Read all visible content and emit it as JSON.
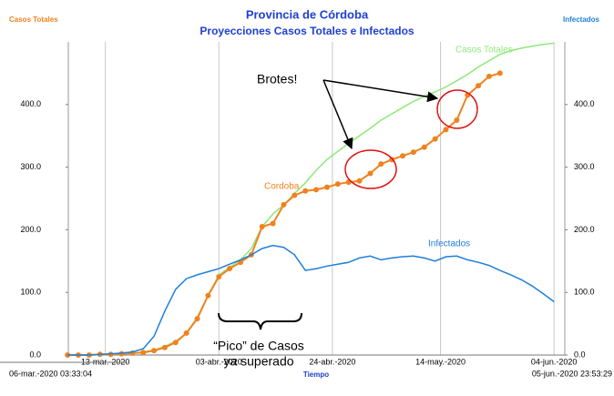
{
  "chart_data": {
    "type": "line",
    "title": "Provincia de Córdoba",
    "subtitle": "Proyecciones Casos Totales e Infectados",
    "y_label": "Casos Totales",
    "y2_label": "Infectados",
    "x_label": "Tiempo",
    "x": [
      "2020-03-06",
      "2020-03-08",
      "2020-03-10",
      "2020-03-12",
      "2020-03-14",
      "2020-03-16",
      "2020-03-18",
      "2020-03-20",
      "2020-03-22",
      "2020-03-24",
      "2020-03-26",
      "2020-03-28",
      "2020-03-30",
      "2020-04-01",
      "2020-04-03",
      "2020-04-05",
      "2020-04-07",
      "2020-04-09",
      "2020-04-11",
      "2020-04-13",
      "2020-04-15",
      "2020-04-17",
      "2020-04-19",
      "2020-04-21",
      "2020-04-23",
      "2020-04-25",
      "2020-04-27",
      "2020-04-29",
      "2020-05-01",
      "2020-05-03",
      "2020-05-05",
      "2020-05-07",
      "2020-05-09",
      "2020-05-11",
      "2020-05-13",
      "2020-05-15",
      "2020-05-17",
      "2020-05-19",
      "2020-05-21",
      "2020-05-23",
      "2020-05-25",
      "2020-05-27",
      "2020-05-29",
      "2020-05-31",
      "2020-06-02",
      "2020-06-04"
    ],
    "series": [
      {
        "name": "Casos Totales",
        "color": "#8ee87a",
        "axis": "y",
        "values": [
          0,
          0,
          0,
          1,
          1,
          2,
          3,
          5,
          8,
          14,
          22,
          35,
          60,
          95,
          128,
          140,
          152,
          170,
          205,
          225,
          240,
          258,
          275,
          295,
          312,
          325,
          338,
          350,
          362,
          375,
          385,
          395,
          405,
          413,
          420,
          428,
          438,
          448,
          460,
          470,
          480,
          486,
          490,
          493,
          496,
          498
        ]
      },
      {
        "name": "Cordoba",
        "color": "#f0821e",
        "axis": "y",
        "markers": true,
        "values": [
          0,
          0,
          0,
          1,
          1,
          2,
          3,
          4,
          7,
          12,
          20,
          35,
          58,
          95,
          125,
          138,
          148,
          160,
          205,
          210,
          240,
          255,
          262,
          264,
          268,
          273,
          276,
          278,
          290,
          305,
          312,
          318,
          324,
          332,
          345,
          360,
          375,
          415,
          430,
          445,
          450,
          null,
          null,
          null,
          null,
          null
        ]
      },
      {
        "name": "Infectados",
        "color": "#1f7fdc",
        "axis": "y2",
        "values": [
          0,
          0,
          0,
          1,
          2,
          3,
          5,
          10,
          30,
          70,
          105,
          122,
          128,
          133,
          138,
          145,
          152,
          160,
          170,
          175,
          172,
          160,
          135,
          138,
          142,
          145,
          148,
          155,
          158,
          152,
          155,
          157,
          158,
          155,
          150,
          157,
          158,
          152,
          148,
          143,
          135,
          128,
          120,
          110,
          98,
          85
        ]
      }
    ],
    "xlim": [
      {
        "value": "2020-03-06T03:33:04",
        "label": "06-mar.-2020 03:33:04"
      },
      {
        "value": "2020-06-05T23:53:29",
        "label": "05-jun.-2020 23:53:29"
      }
    ],
    "xticks": [
      {
        "value": "2020-03-13",
        "label": "13-mar.-2020"
      },
      {
        "value": "2020-04-03",
        "label": "03-abr.-2020"
      },
      {
        "value": "2020-04-24",
        "label": "24-abr.-2020"
      },
      {
        "value": "2020-05-14",
        "label": "14-may.-2020"
      },
      {
        "value": "2020-06-04",
        "label": "04-jun.-2020"
      }
    ],
    "ylim": [
      0,
      500
    ],
    "yticks": [
      {
        "value": 0,
        "label": "0.0"
      },
      {
        "value": 100,
        "label": "100.0"
      },
      {
        "value": 200,
        "label": "200.0"
      },
      {
        "value": 300,
        "label": "300.0"
      },
      {
        "value": 400,
        "label": "400.0"
      }
    ],
    "y2lim": [
      0,
      500
    ],
    "y2ticks": [
      {
        "value": 0,
        "label": "0.0"
      },
      {
        "value": 100,
        "label": "100.0"
      },
      {
        "value": 200,
        "label": "200.0"
      },
      {
        "value": 300,
        "label": "300.0"
      },
      {
        "value": 400,
        "label": "400.0"
      }
    ],
    "grid": "x",
    "annotations": [
      "Brotes!",
      "“Pico” de Casos",
      "ya superado"
    ]
  }
}
